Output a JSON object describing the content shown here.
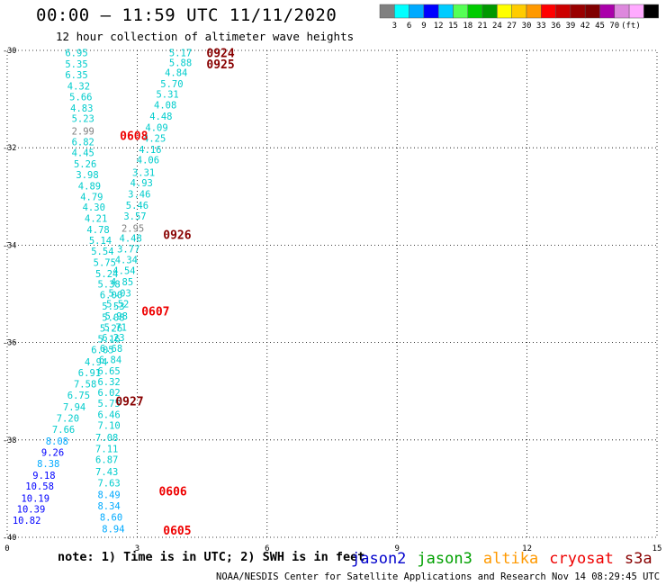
{
  "header": {
    "title": "00:00 – 11:59 UTC 11/11/2020",
    "subtitle": "12 hour collection of altimeter wave heights"
  },
  "footer": {
    "note": "note: 1) Time is in UTC; 2) SWH is in feet",
    "credit": "NOAA/NESDIS Center for Satellite Applications and Research    Nov 14 08:29:45 UTC 2020"
  },
  "legend": {
    "satellites": [
      {
        "name": "jason2",
        "color": "#0000cc"
      },
      {
        "name": "jason3",
        "color": "#00a000"
      },
      {
        "name": "altika",
        "color": "#ff9900"
      },
      {
        "name": "cryosat",
        "color": "#ee0000"
      },
      {
        "name": "s3a",
        "color": "#880000"
      }
    ]
  },
  "colorbar": {
    "colors": [
      "#808080",
      "#00ffff",
      "#00aaff",
      "#0000ff",
      "#00ccff",
      "#55ff55",
      "#00cc00",
      "#009900",
      "#ffff00",
      "#ffcc00",
      "#ff9900",
      "#ff0000",
      "#cc0000",
      "#990000",
      "#800000",
      "#aa00aa",
      "#dd88dd",
      "#ffaaff",
      "#000000"
    ],
    "labels": [
      "3",
      "6",
      "9",
      "12",
      "15",
      "18",
      "21",
      "24",
      "27",
      "30",
      "33",
      "36",
      "39",
      "42",
      "45",
      "70",
      "(ft)"
    ]
  },
  "chart_data": {
    "type": "scatter",
    "title": "00:00 – 11:59 UTC 11/11/2020",
    "xlim": [
      0,
      15
    ],
    "ylim": [
      -40,
      -30
    ],
    "x_ticks": [
      "0",
      "3",
      "6",
      "9",
      "12",
      "15"
    ],
    "y_ticks": [
      "-30",
      "-32",
      "-34",
      "-36",
      "-38",
      "-40"
    ],
    "grid": "dotted",
    "pass_labels": [
      {
        "text": "0924",
        "x": 4.6,
        "y": -30.05,
        "color": "#880000"
      },
      {
        "text": "0925",
        "x": 4.6,
        "y": -30.28,
        "color": "#880000"
      },
      {
        "text": "0608",
        "x": 2.6,
        "y": -31.75,
        "color": "#ee0000"
      },
      {
        "text": "0926",
        "x": 3.6,
        "y": -33.78,
        "color": "#880000"
      },
      {
        "text": "0607",
        "x": 3.1,
        "y": -35.35,
        "color": "#ee0000"
      },
      {
        "text": "0927",
        "x": 2.5,
        "y": -37.2,
        "color": "#880000"
      },
      {
        "text": "0606",
        "x": 3.5,
        "y": -39.05,
        "color": "#ee0000"
      },
      {
        "text": "0605",
        "x": 3.6,
        "y": -39.85,
        "color": "#ee0000"
      }
    ],
    "series": [
      {
        "name": "0924/0925",
        "points": [
          {
            "x": 4.0,
            "y": -30.05,
            "v": "5.17",
            "c": "#00cccc"
          },
          {
            "x": 4.0,
            "y": -30.25,
            "v": "5.88",
            "c": "#00cccc"
          },
          {
            "x": 3.9,
            "y": -30.45,
            "v": "4.84",
            "c": "#00cccc"
          },
          {
            "x": 3.8,
            "y": -30.68,
            "v": "5.70",
            "c": "#00cccc"
          },
          {
            "x": 3.7,
            "y": -30.9,
            "v": "5.31",
            "c": "#00cccc"
          },
          {
            "x": 3.65,
            "y": -31.12,
            "v": "4.08",
            "c": "#00cccc"
          },
          {
            "x": 3.55,
            "y": -31.35,
            "v": "4.48",
            "c": "#00cccc"
          },
          {
            "x": 3.45,
            "y": -31.58,
            "v": "4.09",
            "c": "#00cccc"
          },
          {
            "x": 3.4,
            "y": -31.8,
            "v": "4.25",
            "c": "#00cccc"
          },
          {
            "x": 3.3,
            "y": -32.03,
            "v": "4.16",
            "c": "#00cccc"
          },
          {
            "x": 3.25,
            "y": -32.25,
            "v": "4.06",
            "c": "#00cccc"
          },
          {
            "x": 3.15,
            "y": -32.5,
            "v": "3.31",
            "c": "#00cccc"
          },
          {
            "x": 3.1,
            "y": -32.72,
            "v": "4.93",
            "c": "#00cccc"
          },
          {
            "x": 3.05,
            "y": -32.95,
            "v": "3.46",
            "c": "#00cccc"
          },
          {
            "x": 3.0,
            "y": -33.18,
            "v": "5.46",
            "c": "#00cccc"
          },
          {
            "x": 2.95,
            "y": -33.4,
            "v": "3.57",
            "c": "#00cccc"
          },
          {
            "x": 2.9,
            "y": -33.65,
            "v": "2.95",
            "c": "#808080"
          },
          {
            "x": 2.85,
            "y": -33.85,
            "v": "4.48",
            "c": "#00cccc"
          },
          {
            "x": 2.8,
            "y": -34.08,
            "v": "3.77",
            "c": "#00cccc"
          },
          {
            "x": 2.75,
            "y": -34.3,
            "v": "4.34",
            "c": "#00cccc"
          },
          {
            "x": 2.7,
            "y": -34.52,
            "v": "4.54",
            "c": "#00cccc"
          },
          {
            "x": 2.65,
            "y": -34.75,
            "v": "4.85",
            "c": "#00cccc"
          },
          {
            "x": 2.6,
            "y": -34.98,
            "v": "5.03",
            "c": "#00cccc"
          },
          {
            "x": 2.55,
            "y": -35.2,
            "v": "5.52",
            "c": "#00cccc"
          },
          {
            "x": 2.52,
            "y": -35.45,
            "v": "5.98",
            "c": "#00cccc"
          },
          {
            "x": 2.5,
            "y": -35.68,
            "v": "5.71",
            "c": "#00cccc"
          },
          {
            "x": 2.45,
            "y": -35.9,
            "v": "6.23",
            "c": "#00cccc"
          },
          {
            "x": 2.4,
            "y": -36.12,
            "v": "6.68",
            "c": "#00cccc"
          },
          {
            "x": 2.38,
            "y": -36.35,
            "v": "6.84",
            "c": "#00cccc"
          },
          {
            "x": 2.35,
            "y": -36.58,
            "v": "6.65",
            "c": "#00cccc"
          },
          {
            "x": 2.35,
            "y": -36.8,
            "v": "6.32",
            "c": "#00cccc"
          },
          {
            "x": 2.35,
            "y": -37.02,
            "v": "6.02",
            "c": "#00cccc"
          },
          {
            "x": 2.35,
            "y": -37.25,
            "v": "5.75",
            "c": "#00cccc"
          },
          {
            "x": 2.35,
            "y": -37.48,
            "v": "6.46",
            "c": "#00cccc"
          },
          {
            "x": 2.35,
            "y": -37.7,
            "v": "7.10",
            "c": "#00cccc"
          },
          {
            "x": 2.3,
            "y": -37.95,
            "v": "7.08",
            "c": "#00cccc"
          },
          {
            "x": 2.3,
            "y": -38.18,
            "v": "7.11",
            "c": "#00cccc"
          },
          {
            "x": 2.3,
            "y": -38.4,
            "v": "6.87",
            "c": "#00cccc"
          },
          {
            "x": 2.3,
            "y": -38.65,
            "v": "7.43",
            "c": "#00cccc"
          },
          {
            "x": 2.35,
            "y": -38.88,
            "v": "7.63",
            "c": "#00cccc"
          },
          {
            "x": 2.35,
            "y": -39.12,
            "v": "8.49",
            "c": "#00aaff"
          },
          {
            "x": 2.35,
            "y": -39.35,
            "v": "8.34",
            "c": "#00aaff"
          },
          {
            "x": 2.4,
            "y": -39.58,
            "v": "8.60",
            "c": "#00aaff"
          },
          {
            "x": 2.45,
            "y": -39.82,
            "v": "8.94",
            "c": "#00aaff"
          }
        ]
      },
      {
        "name": "0608/0607",
        "points": [
          {
            "x": 1.6,
            "y": -30.05,
            "v": "6.95",
            "c": "#00cccc"
          },
          {
            "x": 1.6,
            "y": -30.28,
            "v": "5.35",
            "c": "#00cccc"
          },
          {
            "x": 1.6,
            "y": -30.5,
            "v": "6.35",
            "c": "#00cccc"
          },
          {
            "x": 1.65,
            "y": -30.73,
            "v": "4.32",
            "c": "#00cccc"
          },
          {
            "x": 1.7,
            "y": -30.95,
            "v": "5.66",
            "c": "#00cccc"
          },
          {
            "x": 1.72,
            "y": -31.18,
            "v": "4.83",
            "c": "#00cccc"
          },
          {
            "x": 1.75,
            "y": -31.4,
            "v": "5.23",
            "c": "#00cccc"
          },
          {
            "x": 1.75,
            "y": -31.65,
            "v": "2.99",
            "c": "#808080"
          },
          {
            "x": 1.75,
            "y": -31.88,
            "v": "6.82",
            "c": "#00cccc"
          },
          {
            "x": 1.75,
            "y": -32.1,
            "v": "4.45",
            "c": "#00cccc"
          },
          {
            "x": 1.8,
            "y": -32.33,
            "v": "5.26",
            "c": "#00cccc"
          },
          {
            "x": 1.85,
            "y": -32.55,
            "v": "3.98",
            "c": "#00cccc"
          },
          {
            "x": 1.9,
            "y": -32.78,
            "v": "4.89",
            "c": "#00cccc"
          },
          {
            "x": 1.95,
            "y": -33.0,
            "v": "4.79",
            "c": "#00cccc"
          },
          {
            "x": 2.0,
            "y": -33.22,
            "v": "4.30",
            "c": "#00cccc"
          },
          {
            "x": 2.05,
            "y": -33.45,
            "v": "4.21",
            "c": "#00cccc"
          },
          {
            "x": 2.1,
            "y": -33.68,
            "v": "4.78",
            "c": "#00cccc"
          },
          {
            "x": 2.15,
            "y": -33.9,
            "v": "5.14",
            "c": "#00cccc"
          },
          {
            "x": 2.2,
            "y": -34.12,
            "v": "5.54",
            "c": "#00cccc"
          },
          {
            "x": 2.25,
            "y": -34.35,
            "v": "5.75",
            "c": "#00cccc"
          },
          {
            "x": 2.3,
            "y": -34.58,
            "v": "5.24",
            "c": "#00cccc"
          },
          {
            "x": 2.35,
            "y": -34.8,
            "v": "5.38",
            "c": "#00cccc"
          },
          {
            "x": 2.4,
            "y": -35.02,
            "v": "6.00",
            "c": "#00cccc"
          },
          {
            "x": 2.45,
            "y": -35.25,
            "v": "5.53",
            "c": "#00cccc"
          },
          {
            "x": 2.45,
            "y": -35.48,
            "v": "5.08",
            "c": "#00cccc"
          },
          {
            "x": 2.4,
            "y": -35.7,
            "v": "5.26",
            "c": "#00cccc"
          },
          {
            "x": 2.35,
            "y": -35.92,
            "v": "5.16",
            "c": "#00cccc"
          }
        ]
      },
      {
        "name": "0927/0606/0605",
        "points": [
          {
            "x": 2.2,
            "y": -36.15,
            "v": "6.05",
            "c": "#00cccc"
          },
          {
            "x": 2.05,
            "y": -36.4,
            "v": "4.94",
            "c": "#00cccc"
          },
          {
            "x": 1.9,
            "y": -36.62,
            "v": "6.91",
            "c": "#00cccc"
          },
          {
            "x": 1.8,
            "y": -36.85,
            "v": "7.58",
            "c": "#00cccc"
          },
          {
            "x": 1.65,
            "y": -37.08,
            "v": "6.75",
            "c": "#00cccc"
          },
          {
            "x": 1.55,
            "y": -37.32,
            "v": "7.94",
            "c": "#00cccc"
          },
          {
            "x": 1.4,
            "y": -37.55,
            "v": "7.20",
            "c": "#00cccc"
          },
          {
            "x": 1.3,
            "y": -37.78,
            "v": "7.66",
            "c": "#00cccc"
          },
          {
            "x": 1.15,
            "y": -38.02,
            "v": "8.08",
            "c": "#00aaff"
          },
          {
            "x": 1.05,
            "y": -38.25,
            "v": "9.26",
            "c": "#0000ff"
          },
          {
            "x": 0.95,
            "y": -38.48,
            "v": "8.38",
            "c": "#00aaff"
          },
          {
            "x": 0.85,
            "y": -38.72,
            "v": "9.18",
            "c": "#0000ff"
          },
          {
            "x": 0.75,
            "y": -38.95,
            "v": "10.58",
            "c": "#0000ff"
          },
          {
            "x": 0.65,
            "y": -39.2,
            "v": "10.19",
            "c": "#0000ff"
          },
          {
            "x": 0.55,
            "y": -39.42,
            "v": "10.39",
            "c": "#0000ff"
          },
          {
            "x": 0.45,
            "y": -39.65,
            "v": "10.82",
            "c": "#0000ff"
          }
        ]
      }
    ]
  }
}
